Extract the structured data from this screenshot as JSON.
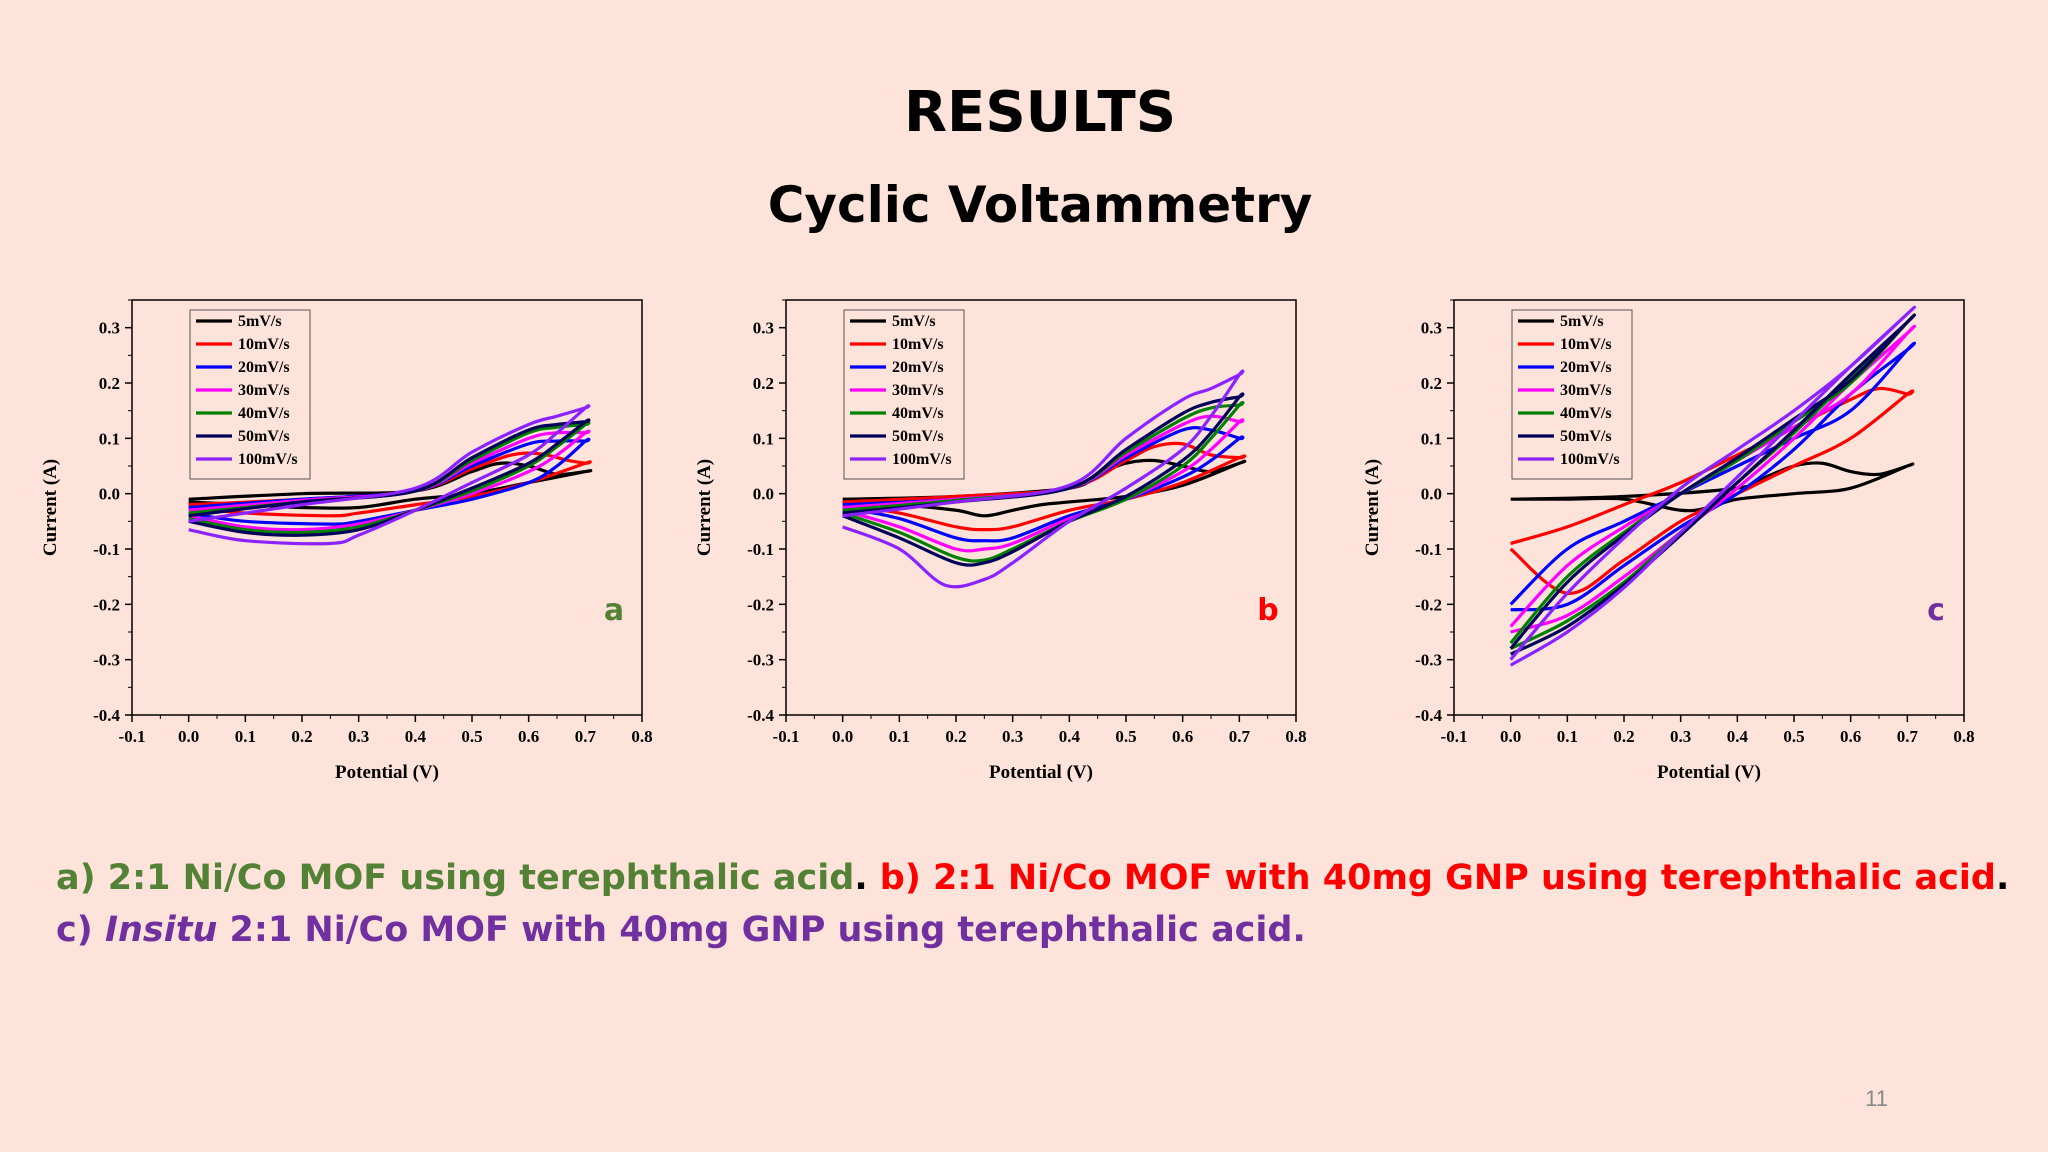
{
  "slide": {
    "title": "RESULTS",
    "subtitle": "Cyclic Voltammetry",
    "page_number": "11"
  },
  "caption": {
    "parts": [
      {
        "text": "a) 2:1 Ni/Co MOF using terephthalic acid",
        "color": "#538135",
        "italic": false
      },
      {
        "text": ". ",
        "color": "#000000",
        "italic": false
      },
      {
        "text": "b) 2:1 Ni/Co MOF with 40mg GNP using terephthalic acid",
        "color": "#ff0000",
        "italic": false
      },
      {
        "text": ". ",
        "color": "#000000",
        "italic": false
      },
      {
        "text": "c) ",
        "color": "#7030a0",
        "italic": false
      },
      {
        "text": "Insitu",
        "color": "#7030a0",
        "italic": true
      },
      {
        "text": " 2:1 Ni/Co MOF with 40mg GNP using terephthalic acid.",
        "color": "#7030a0",
        "italic": false
      }
    ]
  },
  "chart_data": [
    {
      "type": "line",
      "panel": "a",
      "panel_color": "#538135",
      "xlabel": "Potential (V)",
      "ylabel": "Current (A)",
      "xlim": [
        -0.1,
        0.8
      ],
      "ylim": [
        -0.4,
        0.35
      ],
      "xticks": [
        "-0.1",
        "0.0",
        "0.1",
        "0.2",
        "0.3",
        "0.4",
        "0.5",
        "0.6",
        "0.7",
        "0.8"
      ],
      "yticks": [
        "-0.4",
        "-0.3",
        "-0.2",
        "-0.1",
        "0.0",
        "0.1",
        "0.2",
        "0.3"
      ],
      "series": [
        {
          "name": "5mV/s",
          "color": "#000000",
          "x": [
            0,
            0.2,
            0.4,
            0.5,
            0.55,
            0.6,
            0.65,
            0.7,
            0.7,
            0.6,
            0.5,
            0.4,
            0.3,
            0.2,
            0.1,
            0
          ],
          "y": [
            -0.01,
            0,
            0.005,
            0.04,
            0.055,
            0.05,
            0.035,
            0.04,
            0.04,
            0.02,
            0,
            -0.01,
            -0.025,
            -0.025,
            -0.02,
            -0.015
          ]
        },
        {
          "name": "10mV/s",
          "color": "#ff0000",
          "x": [
            0,
            0.2,
            0.4,
            0.5,
            0.57,
            0.62,
            0.67,
            0.7,
            0.7,
            0.6,
            0.5,
            0.4,
            0.3,
            0.25,
            0.1,
            0
          ],
          "y": [
            -0.02,
            -0.01,
            0.005,
            0.045,
            0.07,
            0.072,
            0.06,
            0.055,
            0.055,
            0.02,
            -0.005,
            -0.02,
            -0.035,
            -0.04,
            -0.035,
            -0.025
          ]
        },
        {
          "name": "20mV/s",
          "color": "#0000ff",
          "x": [
            0,
            0.2,
            0.4,
            0.5,
            0.6,
            0.65,
            0.7,
            0.7,
            0.65,
            0.6,
            0.5,
            0.4,
            0.3,
            0.25,
            0.1,
            0
          ],
          "y": [
            -0.025,
            -0.01,
            0.005,
            0.05,
            0.09,
            0.095,
            0.095,
            0.095,
            0.05,
            0.02,
            -0.01,
            -0.03,
            -0.05,
            -0.055,
            -0.05,
            -0.035
          ]
        },
        {
          "name": "30mV/s",
          "color": "#ff00ff",
          "x": [
            0,
            0.2,
            0.4,
            0.5,
            0.6,
            0.65,
            0.7,
            0.7,
            0.65,
            0.6,
            0.5,
            0.4,
            0.3,
            0.2,
            0.1,
            0
          ],
          "y": [
            -0.03,
            -0.012,
            0.005,
            0.055,
            0.1,
            0.11,
            0.11,
            0.11,
            0.07,
            0.04,
            0,
            -0.03,
            -0.055,
            -0.065,
            -0.06,
            -0.04
          ]
        },
        {
          "name": "40mV/s",
          "color": "#008000",
          "x": [
            0,
            0.2,
            0.4,
            0.5,
            0.6,
            0.65,
            0.7,
            0.7,
            0.65,
            0.6,
            0.5,
            0.4,
            0.3,
            0.2,
            0.1,
            0
          ],
          "y": [
            -0.035,
            -0.015,
            0.005,
            0.06,
            0.11,
            0.12,
            0.125,
            0.125,
            0.085,
            0.05,
            0.005,
            -0.03,
            -0.06,
            -0.07,
            -0.065,
            -0.045
          ]
        },
        {
          "name": "50mV/s",
          "color": "#00005a",
          "x": [
            0,
            0.2,
            0.4,
            0.5,
            0.6,
            0.65,
            0.7,
            0.7,
            0.65,
            0.6,
            0.5,
            0.4,
            0.3,
            0.2,
            0.1,
            0
          ],
          "y": [
            -0.04,
            -0.015,
            0.005,
            0.065,
            0.115,
            0.125,
            0.13,
            0.13,
            0.09,
            0.055,
            0.01,
            -0.03,
            -0.065,
            -0.075,
            -0.07,
            -0.05
          ]
        },
        {
          "name": "100mV/s",
          "color": "#8b22ff",
          "x": [
            0,
            0.2,
            0.4,
            0.5,
            0.6,
            0.65,
            0.7,
            0.7,
            0.65,
            0.6,
            0.5,
            0.4,
            0.3,
            0.25,
            0.1,
            0
          ],
          "y": [
            -0.05,
            -0.02,
            0.01,
            0.075,
            0.125,
            0.14,
            0.155,
            0.155,
            0.11,
            0.07,
            0.02,
            -0.03,
            -0.075,
            -0.09,
            -0.085,
            -0.065
          ]
        }
      ]
    },
    {
      "type": "line",
      "panel": "b",
      "panel_color": "#ff0000",
      "xlabel": "Potential (V)",
      "ylabel": "Current (A)",
      "xlim": [
        -0.1,
        0.8
      ],
      "ylim": [
        -0.4,
        0.35
      ],
      "xticks": [
        "-0.1",
        "0.0",
        "0.1",
        "0.2",
        "0.3",
        "0.4",
        "0.5",
        "0.6",
        "0.7",
        "0.8"
      ],
      "yticks": [
        "-0.4",
        "-0.3",
        "-0.2",
        "-0.1",
        "0.0",
        "0.1",
        "0.2",
        "0.3"
      ],
      "series": [
        {
          "name": "5mV/s",
          "color": "#000000",
          "x": [
            0,
            0.2,
            0.4,
            0.45,
            0.5,
            0.55,
            0.6,
            0.65,
            0.7,
            0.7,
            0.6,
            0.5,
            0.4,
            0.35,
            0.3,
            0.25,
            0.2,
            0.1,
            0
          ],
          "y": [
            -0.01,
            -0.005,
            0.01,
            0.035,
            0.055,
            0.06,
            0.05,
            0.04,
            0.055,
            0.055,
            0.015,
            -0.005,
            -0.015,
            -0.02,
            -0.03,
            -0.04,
            -0.03,
            -0.02,
            -0.015
          ]
        },
        {
          "name": "10mV/s",
          "color": "#ff0000",
          "x": [
            0,
            0.2,
            0.4,
            0.5,
            0.55,
            0.6,
            0.65,
            0.7,
            0.7,
            0.6,
            0.5,
            0.4,
            0.3,
            0.25,
            0.2,
            0.1,
            0
          ],
          "y": [
            -0.015,
            -0.005,
            0.01,
            0.06,
            0.085,
            0.09,
            0.07,
            0.065,
            0.065,
            0.02,
            -0.01,
            -0.03,
            -0.06,
            -0.065,
            -0.06,
            -0.035,
            -0.02
          ]
        },
        {
          "name": "20mV/s",
          "color": "#0000ff",
          "x": [
            0,
            0.2,
            0.4,
            0.5,
            0.6,
            0.65,
            0.7,
            0.7,
            0.65,
            0.6,
            0.5,
            0.4,
            0.3,
            0.25,
            0.2,
            0.1,
            0
          ],
          "y": [
            -0.02,
            -0.01,
            0.01,
            0.065,
            0.115,
            0.115,
            0.1,
            0.1,
            0.06,
            0.03,
            -0.01,
            -0.04,
            -0.08,
            -0.085,
            -0.08,
            -0.045,
            -0.025
          ]
        },
        {
          "name": "30mV/s",
          "color": "#ff00ff",
          "x": [
            0,
            0.2,
            0.4,
            0.5,
            0.6,
            0.65,
            0.7,
            0.7,
            0.65,
            0.6,
            0.5,
            0.4,
            0.3,
            0.25,
            0.2,
            0.1,
            0
          ],
          "y": [
            -0.025,
            -0.01,
            0.01,
            0.07,
            0.125,
            0.14,
            0.13,
            0.13,
            0.08,
            0.04,
            -0.01,
            -0.045,
            -0.09,
            -0.1,
            -0.1,
            -0.06,
            -0.03
          ]
        },
        {
          "name": "40mV/s",
          "color": "#008000",
          "x": [
            0,
            0.2,
            0.4,
            0.5,
            0.6,
            0.65,
            0.7,
            0.7,
            0.65,
            0.6,
            0.5,
            0.4,
            0.3,
            0.25,
            0.2,
            0.1,
            0
          ],
          "y": [
            -0.03,
            -0.012,
            0.01,
            0.075,
            0.135,
            0.155,
            0.16,
            0.16,
            0.1,
            0.05,
            -0.01,
            -0.05,
            -0.1,
            -0.12,
            -0.115,
            -0.07,
            -0.035
          ]
        },
        {
          "name": "50mV/s",
          "color": "#00005a",
          "x": [
            0,
            0.2,
            0.4,
            0.5,
            0.6,
            0.65,
            0.7,
            0.7,
            0.65,
            0.6,
            0.5,
            0.4,
            0.3,
            0.25,
            0.2,
            0.1,
            0
          ],
          "y": [
            -0.035,
            -0.015,
            0.01,
            0.08,
            0.145,
            0.165,
            0.175,
            0.175,
            0.11,
            0.06,
            -0.005,
            -0.05,
            -0.105,
            -0.125,
            -0.125,
            -0.08,
            -0.04
          ]
        },
        {
          "name": "100mV/s",
          "color": "#8b22ff",
          "x": [
            0,
            0.2,
            0.4,
            0.5,
            0.6,
            0.65,
            0.7,
            0.7,
            0.65,
            0.6,
            0.5,
            0.4,
            0.3,
            0.25,
            0.18,
            0.1,
            0
          ],
          "y": [
            -0.04,
            -0.015,
            0.015,
            0.1,
            0.17,
            0.19,
            0.215,
            0.215,
            0.14,
            0.08,
            0.01,
            -0.05,
            -0.125,
            -0.155,
            -0.165,
            -0.1,
            -0.06
          ]
        }
      ]
    },
    {
      "type": "line",
      "panel": "c",
      "panel_color": "#7030a0",
      "xlabel": "Potential (V)",
      "ylabel": "Current (A)",
      "xlim": [
        -0.1,
        0.8
      ],
      "ylim": [
        -0.4,
        0.35
      ],
      "xticks": [
        "-0.1",
        "0.0",
        "0.1",
        "0.2",
        "0.3",
        "0.4",
        "0.5",
        "0.6",
        "0.7",
        "0.8"
      ],
      "yticks": [
        "-0.4",
        "-0.3",
        "-0.2",
        "-0.1",
        "0.0",
        "0.1",
        "0.2",
        "0.3"
      ],
      "series": [
        {
          "name": "5mV/s",
          "color": "#000000",
          "x": [
            0,
            0.2,
            0.4,
            0.45,
            0.5,
            0.55,
            0.6,
            0.65,
            0.7,
            0.7,
            0.6,
            0.5,
            0.4,
            0.35,
            0.3,
            0.2,
            0.1,
            0
          ],
          "y": [
            -0.01,
            -0.005,
            0.01,
            0.03,
            0.05,
            0.055,
            0.04,
            0.035,
            0.05,
            0.05,
            0.01,
            0,
            -0.01,
            -0.025,
            -0.03,
            -0.01,
            -0.01,
            -0.01
          ]
        },
        {
          "name": "10mV/s",
          "color": "#ff0000",
          "x": [
            0,
            0.1,
            0.2,
            0.3,
            0.4,
            0.5,
            0.6,
            0.65,
            0.7,
            0.7,
            0.6,
            0.5,
            0.4,
            0.3,
            0.2,
            0.1,
            0
          ],
          "y": [
            -0.09,
            -0.06,
            -0.02,
            0.02,
            0.07,
            0.12,
            0.17,
            0.19,
            0.18,
            0.18,
            0.1,
            0.05,
            0,
            -0.05,
            -0.12,
            -0.18,
            -0.1
          ]
        },
        {
          "name": "20mV/s",
          "color": "#0000ff",
          "x": [
            0,
            0.1,
            0.2,
            0.3,
            0.4,
            0.5,
            0.6,
            0.7,
            0.7,
            0.6,
            0.5,
            0.4,
            0.3,
            0.2,
            0.1,
            0
          ],
          "y": [
            -0.2,
            -0.1,
            -0.05,
            0,
            0.05,
            0.1,
            0.15,
            0.26,
            0.26,
            0.18,
            0.08,
            0,
            -0.06,
            -0.13,
            -0.2,
            -0.21
          ]
        },
        {
          "name": "30mV/s",
          "color": "#ff00ff",
          "x": [
            0,
            0.1,
            0.2,
            0.3,
            0.4,
            0.5,
            0.6,
            0.7,
            0.7,
            0.6,
            0.5,
            0.4,
            0.3,
            0.2,
            0.1,
            0
          ],
          "y": [
            -0.24,
            -0.13,
            -0.06,
            0,
            0.06,
            0.12,
            0.18,
            0.29,
            0.29,
            0.2,
            0.1,
            0.01,
            -0.07,
            -0.15,
            -0.22,
            -0.25
          ]
        },
        {
          "name": "40mV/s",
          "color": "#008000",
          "x": [
            0,
            0.1,
            0.2,
            0.3,
            0.4,
            0.5,
            0.6,
            0.7,
            0.7,
            0.6,
            0.5,
            0.4,
            0.3,
            0.2,
            0.1,
            0
          ],
          "y": [
            -0.27,
            -0.15,
            -0.07,
            0,
            0.06,
            0.13,
            0.2,
            0.31,
            0.31,
            0.21,
            0.11,
            0.02,
            -0.07,
            -0.16,
            -0.23,
            -0.28
          ]
        },
        {
          "name": "50mV/s",
          "color": "#00005a",
          "x": [
            0,
            0.1,
            0.2,
            0.3,
            0.4,
            0.5,
            0.6,
            0.7,
            0.7,
            0.6,
            0.5,
            0.4,
            0.3,
            0.2,
            0.1,
            0
          ],
          "y": [
            -0.28,
            -0.16,
            -0.075,
            0,
            0.065,
            0.135,
            0.205,
            0.31,
            0.31,
            0.215,
            0.115,
            0.02,
            -0.075,
            -0.165,
            -0.24,
            -0.29
          ]
        },
        {
          "name": "100mV/s",
          "color": "#8b22ff",
          "x": [
            0,
            0.1,
            0.2,
            0.3,
            0.4,
            0.5,
            0.6,
            0.7,
            0.7,
            0.6,
            0.5,
            0.4,
            0.3,
            0.2,
            0.1,
            0
          ],
          "y": [
            -0.3,
            -0.18,
            -0.08,
            0.01,
            0.08,
            0.15,
            0.23,
            0.325,
            0.325,
            0.23,
            0.13,
            0.03,
            -0.07,
            -0.17,
            -0.25,
            -0.31
          ]
        }
      ]
    }
  ]
}
